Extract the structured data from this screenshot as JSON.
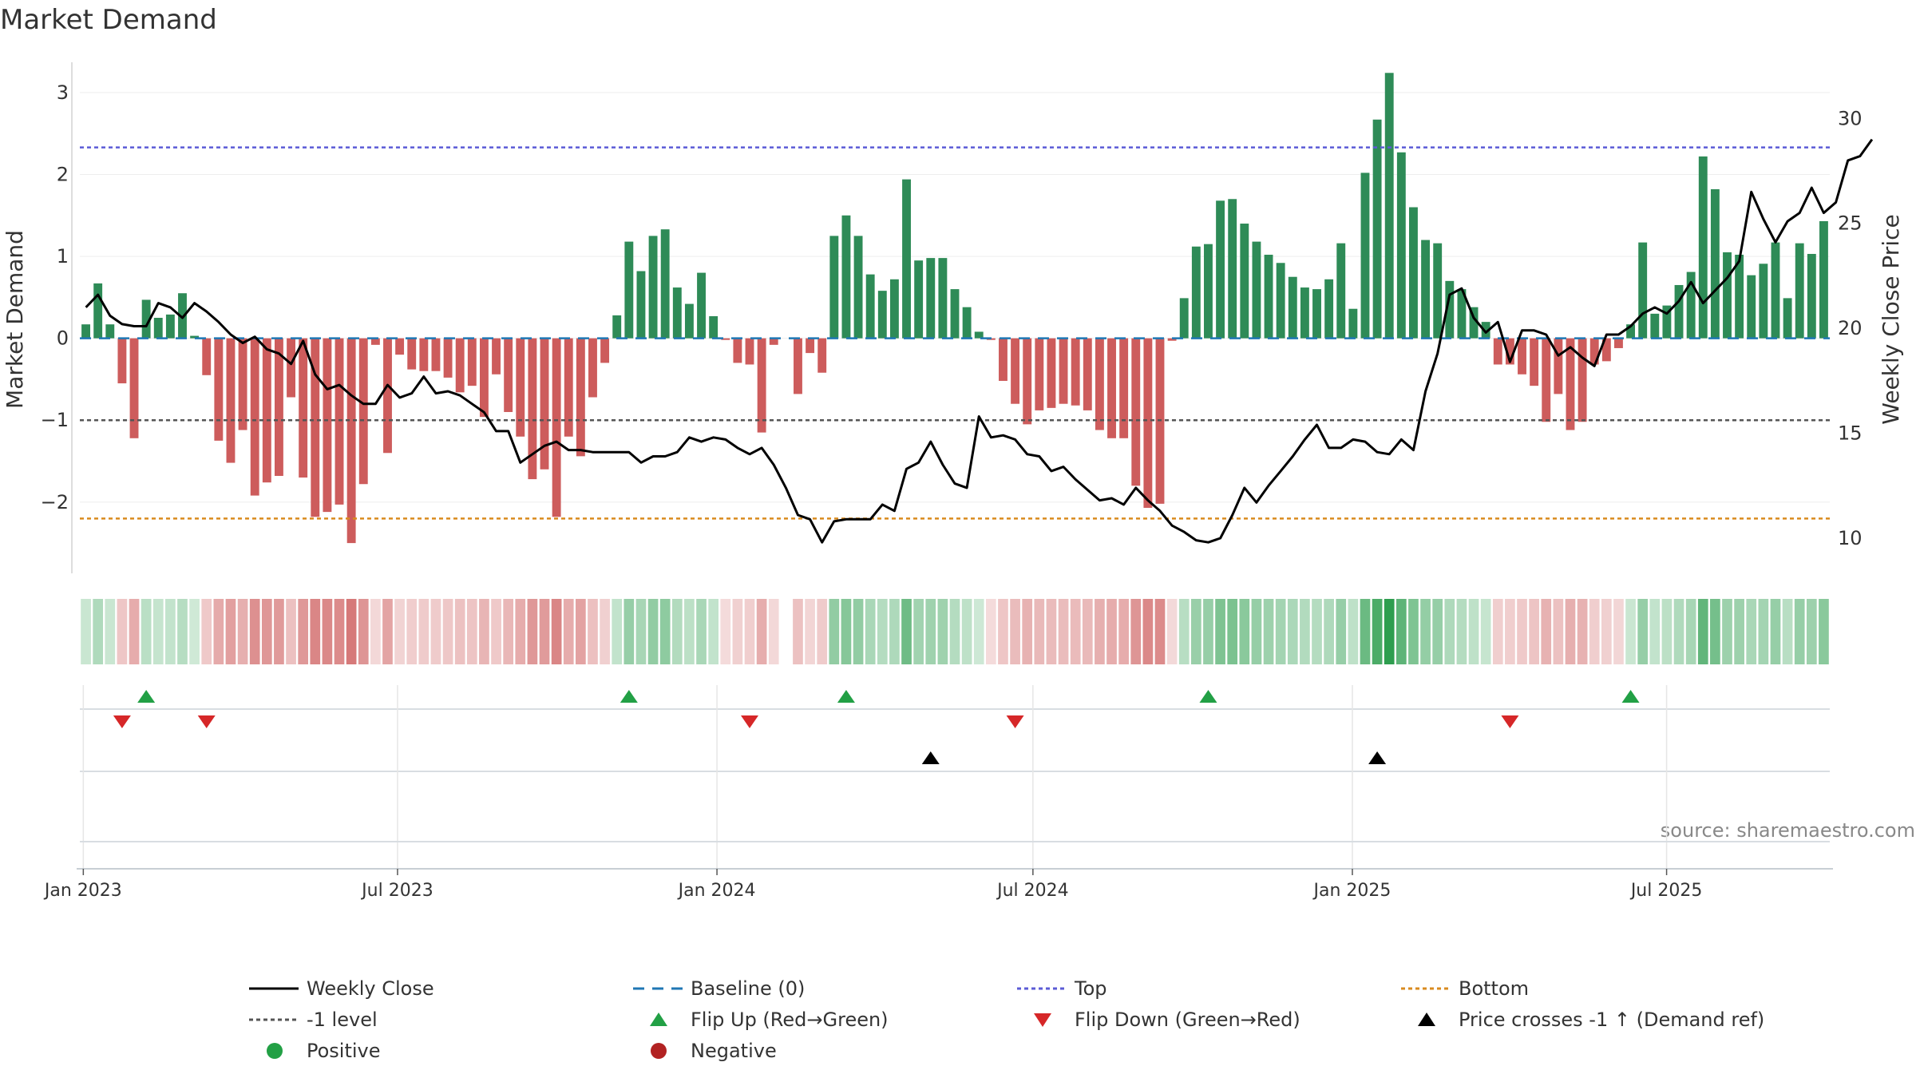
{
  "chart_data": {
    "type": "bar",
    "title": "Market Demand",
    "ylabel": "Market Demand",
    "y2label": "Weekly Close Price",
    "ylim": [
      -2.85,
      3.35
    ],
    "y2lim": [
      8.4,
      32.6
    ],
    "yticks": [
      3,
      2,
      1,
      0,
      -1,
      -2
    ],
    "yticklabels": [
      "3",
      "2",
      "1",
      "0",
      "−1",
      "−2"
    ],
    "y2ticks": [
      30,
      25,
      20,
      15,
      10
    ],
    "y2ticklabels": [
      "30",
      "25",
      "20",
      "15",
      "10"
    ],
    "x_start": "2022-12-30",
    "x_end": "2025-10-03",
    "xticks": [
      {
        "label": "Jan 2023",
        "date": "2023-01-01"
      },
      {
        "label": "Jul 2023",
        "date": "2023-07-01"
      },
      {
        "label": "Jan 2024",
        "date": "2024-01-01"
      },
      {
        "label": "Jul 2024",
        "date": "2024-07-01"
      },
      {
        "label": "Jan 2025",
        "date": "2025-01-01"
      },
      {
        "label": "Jul 2025",
        "date": "2025-07-01"
      }
    ],
    "weekly_demand": [
      0.17,
      0.67,
      0.17,
      -0.55,
      -1.22,
      0.47,
      0.25,
      0.29,
      0.55,
      0.03,
      -0.45,
      -1.25,
      -1.52,
      -1.12,
      -1.92,
      -1.76,
      -1.68,
      -0.72,
      -1.7,
      -2.18,
      -2.12,
      -2.03,
      -2.5,
      -1.78,
      -0.08,
      -1.4,
      -0.2,
      -0.38,
      -0.4,
      -0.4,
      -0.48,
      -0.66,
      -0.58,
      -0.96,
      -0.44,
      -0.9,
      -1.2,
      -1.72,
      -1.6,
      -2.18,
      -1.2,
      -1.44,
      -0.72,
      -0.3,
      0.28,
      1.18,
      0.82,
      1.25,
      1.33,
      0.62,
      0.42,
      0.8,
      0.27,
      -0.02,
      -0.3,
      -0.32,
      -1.15,
      -0.08,
      null,
      -0.68,
      -0.18,
      -0.42,
      1.25,
      1.5,
      1.25,
      0.78,
      0.58,
      0.72,
      1.94,
      0.95,
      0.98,
      0.98,
      0.6,
      0.38,
      0.08,
      -0.02,
      -0.52,
      -0.8,
      -1.05,
      -0.88,
      -0.85,
      -0.8,
      -0.82,
      -0.88,
      -1.12,
      -1.22,
      -1.22,
      -1.8,
      -2.07,
      -2.02,
      -0.03,
      0.49,
      1.12,
      1.15,
      1.68,
      1.7,
      1.4,
      1.18,
      1.02,
      0.92,
      0.75,
      0.62,
      0.6,
      0.72,
      1.16,
      0.36,
      2.02,
      2.67,
      3.24,
      2.27,
      1.6,
      1.2,
      1.16,
      0.7,
      0.6,
      0.38,
      0.2,
      -0.32,
      -0.32,
      -0.44,
      -0.58,
      -1.02,
      -0.68,
      -1.12,
      -1.02,
      -0.32,
      -0.28,
      -0.12,
      0.17,
      1.17,
      0.3,
      0.4,
      0.65,
      0.81,
      2.22,
      1.82,
      1.05,
      1.02,
      0.77,
      0.91,
      1.17,
      0.49,
      1.16,
      1.03,
      1.43
    ],
    "weekly_close": [
      21.0,
      21.6,
      20.6,
      20.2,
      20.1,
      20.1,
      21.2,
      21.0,
      20.5,
      21.2,
      20.8,
      20.3,
      19.7,
      19.3,
      19.6,
      19.0,
      18.8,
      18.3,
      19.4,
      17.8,
      17.1,
      17.3,
      16.8,
      16.4,
      16.4,
      17.3,
      16.7,
      16.9,
      17.7,
      16.9,
      17.0,
      16.8,
      16.4,
      16.0,
      15.1,
      15.1,
      13.6,
      14.0,
      14.4,
      14.6,
      14.2,
      14.2,
      14.1,
      14.1,
      14.1,
      14.1,
      13.6,
      13.9,
      13.9,
      14.1,
      14.8,
      14.6,
      14.8,
      14.7,
      14.3,
      14.0,
      14.3,
      13.5,
      12.4,
      11.1,
      10.9,
      9.8,
      10.8,
      10.9,
      10.9,
      10.9,
      11.6,
      11.3,
      13.3,
      13.6,
      14.6,
      13.5,
      12.6,
      12.4,
      15.8,
      14.8,
      14.9,
      14.7,
      14.0,
      13.9,
      13.2,
      13.4,
      12.8,
      12.3,
      11.8,
      11.9,
      11.6,
      12.4,
      11.8,
      11.3,
      10.6,
      10.3,
      9.9,
      9.8,
      10.0,
      11.1,
      12.4,
      11.7,
      12.5,
      13.2,
      13.9,
      14.7,
      15.4,
      14.3,
      14.3,
      14.7,
      14.6,
      14.1,
      14.0,
      14.7,
      14.2,
      17.0,
      18.8,
      21.6,
      21.9,
      20.5,
      19.8,
      20.3,
      18.4,
      19.9,
      19.9,
      19.7,
      18.7,
      19.1,
      18.6,
      18.2,
      19.7,
      19.7,
      20.1,
      20.7,
      21.0,
      20.7,
      21.3,
      22.2,
      21.2,
      21.8,
      22.4,
      23.2,
      26.5,
      25.2,
      24.1,
      25.1,
      25.5,
      26.7,
      25.5,
      26.0,
      28.0,
      28.2,
      29.0
    ],
    "reference_lines": [
      {
        "name": "Baseline (0)",
        "value": 0,
        "color": "#1f77b4"
      },
      {
        "name": "-1 level",
        "value": -1,
        "color": "#555555"
      },
      {
        "name": "Top",
        "value": 2.33,
        "color": "#5b5bd6"
      },
      {
        "name": "Bottom",
        "value": -2.2,
        "color": "#d98b1f"
      }
    ],
    "flip_up_weeks": [
      5,
      45,
      63,
      93,
      128
    ],
    "flip_down_weeks": [
      3,
      10,
      55,
      77,
      118
    ],
    "price_cross_weeks": [
      70,
      107
    ],
    "annotation": "source: sharemaestro.com",
    "legend": [
      {
        "label": "Weekly Close",
        "symbol": "line",
        "color": "#000000"
      },
      {
        "label": "Baseline (0)",
        "symbol": "dash",
        "color": "#1f77b4"
      },
      {
        "label": "Top",
        "symbol": "dot",
        "color": "#5b5bd6"
      },
      {
        "label": "Bottom",
        "symbol": "dot",
        "color": "#d98b1f"
      },
      {
        "label": "-1 level",
        "symbol": "dot",
        "color": "#555555"
      },
      {
        "label": "Flip Up (Red→Green)",
        "symbol": "triangle-up",
        "color": "#22a045"
      },
      {
        "label": "Flip Down (Green→Red)",
        "symbol": "triangle-down",
        "color": "#d62728"
      },
      {
        "label": "Price crosses -1 ↑ (Demand ref)",
        "symbol": "triangle-up",
        "color": "#000000"
      },
      {
        "label": "Positive",
        "symbol": "circle",
        "color": "#22a045"
      },
      {
        "label": "Negative",
        "symbol": "circle",
        "color": "#b22222"
      }
    ],
    "legend_placement": "bottom",
    "colors": {
      "positive": "#2e8b57",
      "negative": "#cd5c5c",
      "heat_positive": "#2e9e4f",
      "heat_negative": "#cd5c5c",
      "grid": "#eeeeee"
    }
  }
}
